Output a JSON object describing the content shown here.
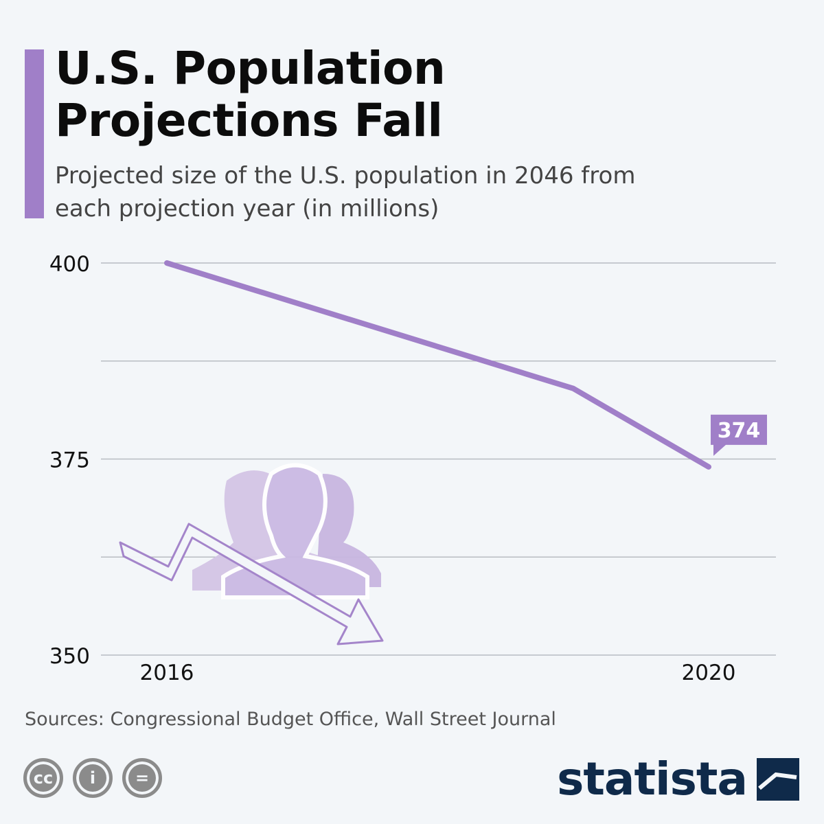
{
  "header": {
    "title": "U.S. Population Projections Fall",
    "subtitle": "Projected size of the U.S. population in 2046 from each projection year (in millions)"
  },
  "colors": {
    "accent": "#a07fc8",
    "grid": "#b8bcc2",
    "brand": "#0f2a4a"
  },
  "chart_data": {
    "type": "line",
    "title": "U.S. Population Projections Fall",
    "subtitle": "Projected size of the U.S. population in 2046 from each projection year (in millions)",
    "x": [
      2016,
      2019,
      2020
    ],
    "x_tick_labels": [
      "2016",
      "2020"
    ],
    "x_tick_values": [
      2016,
      2020
    ],
    "series": [
      {
        "values": [
          400,
          384,
          374
        ]
      }
    ],
    "ylim": [
      350,
      400
    ],
    "y_ticks": [
      350,
      375,
      400
    ],
    "y_tick_labels": [
      "350",
      "375",
      "400"
    ],
    "gridlines": [
      350,
      362.5,
      375,
      387.5,
      400
    ],
    "annotations": [
      {
        "x": 2020,
        "value": 374,
        "label": "374"
      }
    ],
    "grid": true,
    "legend": "none"
  },
  "illustration": {
    "icon": "people-decline-icon"
  },
  "footer": {
    "sources": "Sources: Congressional Budget Office, Wall Street Journal",
    "license_icons": [
      "cc-icon",
      "attribution-icon",
      "no-derivatives-icon"
    ],
    "license_glyphs": [
      "cc",
      "i",
      "="
    ],
    "brand": "statista"
  }
}
